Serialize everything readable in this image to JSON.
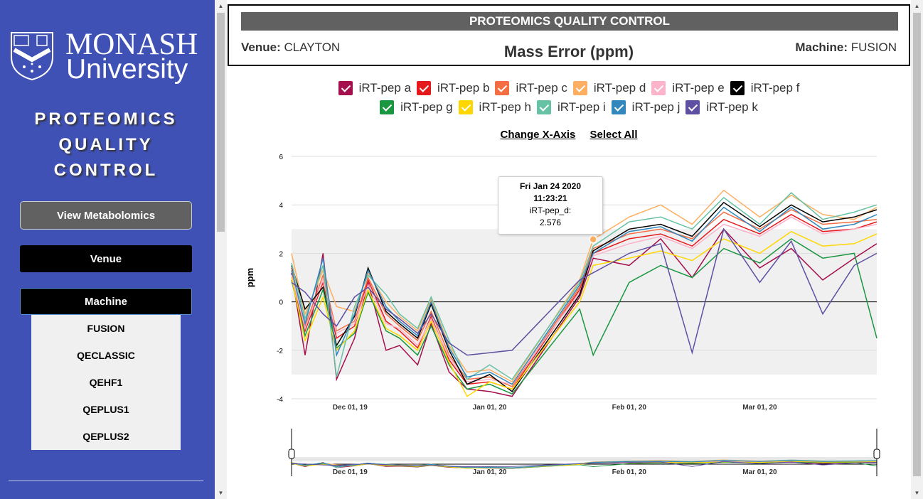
{
  "sidebar": {
    "logo_word1": "MONASH",
    "logo_word2": "University",
    "app_title_lines": [
      "PROTEOMICS",
      "QUALITY",
      "CONTROL"
    ],
    "view_button": "View Metabolomics",
    "venue_button": "Venue",
    "machine_button": "Machine",
    "machines": [
      "FUSION",
      "QECLASSIC",
      "QEHF1",
      "QEPLUS1",
      "QEPLUS2"
    ],
    "bg_color": "#3f51b5"
  },
  "header": {
    "bar_title": "PROTEOMICS QUALITY CONTROL",
    "venue_label": "Venue:",
    "venue_value": "CLAYTON",
    "chart_title": "Mass Error (ppm)",
    "machine_label": "Machine:",
    "machine_value": "FUSION"
  },
  "links": {
    "change_axis": "Change X-Axis",
    "select_all": "Select All"
  },
  "tooltip": {
    "date": "Fri Jan 24 2020",
    "time": "11:23:21",
    "series": "iRT-pep_d:",
    "value": "2.576"
  },
  "chart_data": {
    "type": "line",
    "ylabel": "ppm",
    "ylim": [
      -4,
      6
    ],
    "yticks": [
      -4,
      -2,
      0,
      2,
      4,
      6
    ],
    "shaded_band": [
      -3,
      3
    ],
    "xlim": [
      "2019-11-18",
      "2020-03-27"
    ],
    "xticks": [
      {
        "date": "2019-12-01",
        "label": "Dec 01, 19"
      },
      {
        "date": "2020-01-01",
        "label": "Jan 01, 20"
      },
      {
        "date": "2020-02-01",
        "label": "Feb 01, 20"
      },
      {
        "date": "2020-03-01",
        "label": "Mar 01, 20"
      }
    ],
    "highlight_point": {
      "series": "iRT-pep d",
      "x": "2020-01-24",
      "y": 2.576
    },
    "series": [
      {
        "name": "iRT-pep a",
        "color": "#a50f4d",
        "x": [
          "2019-11-18",
          "2019-11-21",
          "2019-11-25",
          "2019-11-28",
          "2019-12-02",
          "2019-12-05",
          "2019-12-09",
          "2019-12-12",
          "2019-12-16",
          "2019-12-19",
          "2019-12-23",
          "2019-12-27",
          "2020-01-01",
          "2020-01-06",
          "2020-01-21",
          "2020-01-24",
          "2020-02-01",
          "2020-02-08",
          "2020-02-15",
          "2020-02-22",
          "2020-03-01",
          "2020-03-08",
          "2020-03-15",
          "2020-03-22",
          "2020-03-27"
        ],
        "y": [
          1.2,
          -2.2,
          2.0,
          -3.2,
          -1.5,
          0.8,
          -2.0,
          -1.8,
          -2.6,
          -0.9,
          -2.9,
          -3.6,
          -3.7,
          -3.9,
          0.2,
          1.8,
          1.5,
          2.6,
          1.0,
          3.0,
          1.4,
          2.2,
          0.9,
          1.8,
          2.4
        ]
      },
      {
        "name": "iRT-pep b",
        "color": "#e41a1c",
        "x": [
          "2019-11-18",
          "2019-11-21",
          "2019-11-25",
          "2019-11-28",
          "2019-12-02",
          "2019-12-05",
          "2019-12-09",
          "2019-12-12",
          "2019-12-16",
          "2019-12-19",
          "2019-12-23",
          "2019-12-27",
          "2020-01-01",
          "2020-01-06",
          "2020-01-21",
          "2020-01-24",
          "2020-02-01",
          "2020-02-08",
          "2020-02-15",
          "2020-02-22",
          "2020-03-01",
          "2020-03-08",
          "2020-03-15",
          "2020-03-22",
          "2020-03-27"
        ],
        "y": [
          1.0,
          -1.2,
          0.8,
          -1.5,
          -1.0,
          0.9,
          -0.8,
          -1.2,
          -1.9,
          -0.6,
          -2.4,
          -3.4,
          -3.3,
          -3.6,
          0.5,
          2.0,
          2.6,
          2.8,
          2.3,
          3.4,
          2.8,
          3.6,
          2.9,
          3.0,
          3.3
        ]
      },
      {
        "name": "iRT-pep c",
        "color": "#f46d43",
        "x": [
          "2019-11-18",
          "2019-11-21",
          "2019-11-25",
          "2019-11-28",
          "2019-12-02",
          "2019-12-05",
          "2019-12-09",
          "2019-12-12",
          "2019-12-16",
          "2019-12-19",
          "2019-12-23",
          "2019-12-27",
          "2020-01-01",
          "2020-01-06",
          "2020-01-21",
          "2020-01-24",
          "2020-02-01",
          "2020-02-08",
          "2020-02-15",
          "2020-02-22",
          "2020-03-01",
          "2020-03-08",
          "2020-03-15",
          "2020-03-22",
          "2020-03-27"
        ],
        "y": [
          1.4,
          -1.0,
          1.1,
          -1.2,
          -0.8,
          1.0,
          -0.5,
          -1.0,
          -1.6,
          -0.4,
          -2.2,
          -3.2,
          -3.1,
          -3.5,
          0.6,
          2.2,
          2.8,
          3.0,
          2.6,
          3.7,
          3.0,
          3.8,
          3.2,
          3.3,
          3.4
        ]
      },
      {
        "name": "iRT-pep d",
        "color": "#fdae61",
        "x": [
          "2019-11-18",
          "2019-11-21",
          "2019-11-25",
          "2019-11-28",
          "2019-12-02",
          "2019-12-05",
          "2019-12-09",
          "2019-12-12",
          "2019-12-16",
          "2019-12-19",
          "2019-12-23",
          "2019-12-27",
          "2020-01-01",
          "2020-01-06",
          "2020-01-21",
          "2020-01-24",
          "2020-02-01",
          "2020-02-08",
          "2020-02-15",
          "2020-02-22",
          "2020-03-01",
          "2020-03-08",
          "2020-03-15",
          "2020-03-22",
          "2020-03-27"
        ],
        "y": [
          2.0,
          -0.5,
          1.3,
          -0.2,
          -0.4,
          1.2,
          0.0,
          -0.6,
          -1.2,
          0.1,
          -1.8,
          -2.9,
          -2.8,
          -3.3,
          0.9,
          2.576,
          3.5,
          4.0,
          3.2,
          4.6,
          3.5,
          4.4,
          3.6,
          3.4,
          3.9
        ]
      },
      {
        "name": "iRT-pep e",
        "color": "#fbb4c9",
        "x": [
          "2019-11-18",
          "2019-11-21",
          "2019-11-25",
          "2019-11-28",
          "2019-12-02",
          "2019-12-05",
          "2019-12-09",
          "2019-12-12",
          "2019-12-16",
          "2019-12-19",
          "2019-12-23",
          "2019-12-27",
          "2020-01-01",
          "2020-01-06",
          "2020-01-21",
          "2020-01-24",
          "2020-02-01",
          "2020-02-08",
          "2020-02-15",
          "2020-02-22",
          "2020-03-01",
          "2020-03-08",
          "2020-03-15",
          "2020-03-22",
          "2020-03-27"
        ],
        "y": [
          1.1,
          -1.1,
          0.9,
          -1.3,
          -0.9,
          0.7,
          -0.9,
          -1.1,
          -1.8,
          -0.7,
          -2.3,
          -3.3,
          -3.2,
          -3.4,
          0.4,
          1.9,
          2.4,
          2.7,
          2.2,
          3.2,
          2.7,
          3.5,
          2.8,
          3.0,
          3.2
        ]
      },
      {
        "name": "iRT-pep f",
        "color": "#000000",
        "x": [
          "2019-11-18",
          "2019-11-21",
          "2019-11-25",
          "2019-11-28",
          "2019-12-02",
          "2019-12-05",
          "2019-12-09",
          "2019-12-12",
          "2019-12-16",
          "2019-12-19",
          "2019-12-23",
          "2019-12-27",
          "2020-01-01",
          "2020-01-06",
          "2020-01-21",
          "2020-01-24",
          "2020-02-01",
          "2020-02-08",
          "2020-02-15",
          "2020-02-22",
          "2020-03-01",
          "2020-03-08",
          "2020-03-15",
          "2020-03-22",
          "2020-03-27"
        ],
        "y": [
          1.5,
          -0.3,
          0.6,
          -1.8,
          -0.6,
          1.4,
          -0.4,
          -0.9,
          -1.5,
          -0.1,
          -2.0,
          -3.4,
          -3.0,
          -3.7,
          0.3,
          2.1,
          3.0,
          3.2,
          2.7,
          4.1,
          3.1,
          4.0,
          3.3,
          3.5,
          3.8
        ]
      },
      {
        "name": "iRT-pep g",
        "color": "#1a9641",
        "x": [
          "2019-11-18",
          "2019-11-21",
          "2019-11-25",
          "2019-11-28",
          "2019-12-02",
          "2019-12-05",
          "2019-12-09",
          "2019-12-12",
          "2019-12-16",
          "2019-12-19",
          "2019-12-23",
          "2019-12-27",
          "2020-01-01",
          "2020-01-06",
          "2020-01-21",
          "2020-01-24",
          "2020-02-01",
          "2020-02-08",
          "2020-02-15",
          "2020-02-22",
          "2020-03-01",
          "2020-03-08",
          "2020-03-15",
          "2020-03-22",
          "2020-03-27"
        ],
        "y": [
          0.9,
          -1.4,
          0.5,
          -1.9,
          -1.3,
          0.4,
          -1.2,
          -1.5,
          -2.2,
          -1.0,
          -2.6,
          -3.6,
          -3.4,
          -3.8,
          -0.3,
          -2.2,
          0.8,
          1.5,
          1.0,
          2.2,
          1.6,
          2.6,
          1.8,
          2.0,
          -1.5
        ]
      },
      {
        "name": "iRT-pep h",
        "color": "#ffd700",
        "x": [
          "2019-11-18",
          "2019-11-21",
          "2019-11-25",
          "2019-11-28",
          "2019-12-02",
          "2019-12-05",
          "2019-12-09",
          "2019-12-12",
          "2019-12-16",
          "2019-12-19",
          "2019-12-23",
          "2019-12-27",
          "2020-01-01",
          "2020-01-06",
          "2020-01-21",
          "2020-01-24",
          "2020-02-01",
          "2020-02-08",
          "2020-02-15",
          "2020-02-22",
          "2020-03-01",
          "2020-03-08",
          "2020-03-15",
          "2020-03-22",
          "2020-03-27"
        ],
        "y": [
          1.0,
          -1.6,
          0.2,
          -2.0,
          -1.2,
          0.5,
          -1.1,
          -1.4,
          -2.0,
          -0.8,
          -2.5,
          -3.9,
          -3.3,
          -3.6,
          0.0,
          1.5,
          1.8,
          2.1,
          1.7,
          2.6,
          2.0,
          2.9,
          2.3,
          2.4,
          2.8
        ]
      },
      {
        "name": "iRT-pep i",
        "color": "#66c2a5",
        "x": [
          "2019-11-18",
          "2019-11-21",
          "2019-11-25",
          "2019-11-28",
          "2019-12-02",
          "2019-12-05",
          "2019-12-09",
          "2019-12-12",
          "2019-12-16",
          "2019-12-19",
          "2019-12-23",
          "2019-12-27",
          "2020-01-01",
          "2020-01-06",
          "2020-01-21",
          "2020-01-24",
          "2020-02-01",
          "2020-02-08",
          "2020-02-15",
          "2020-02-22",
          "2020-03-01",
          "2020-03-08",
          "2020-03-15",
          "2020-03-22",
          "2020-03-27"
        ],
        "y": [
          1.6,
          -0.7,
          1.5,
          -3.1,
          -0.2,
          1.1,
          0.3,
          -0.5,
          -1.1,
          0.2,
          -1.6,
          -3.2,
          -2.6,
          -3.2,
          0.8,
          2.3,
          3.3,
          3.5,
          3.0,
          4.3,
          3.2,
          4.5,
          3.4,
          3.7,
          4.0
        ]
      },
      {
        "name": "iRT-pep j",
        "color": "#3288bd",
        "x": [
          "2019-11-18",
          "2019-11-21",
          "2019-11-25",
          "2019-11-28",
          "2019-12-02",
          "2019-12-05",
          "2019-12-09",
          "2019-12-12",
          "2019-12-16",
          "2019-12-19",
          "2019-12-23",
          "2019-12-27",
          "2020-01-01",
          "2020-01-06",
          "2020-01-21",
          "2020-01-24",
          "2020-02-01",
          "2020-02-08",
          "2020-02-15",
          "2020-02-22",
          "2020-03-01",
          "2020-03-08",
          "2020-03-15",
          "2020-03-22",
          "2020-03-27"
        ],
        "y": [
          1.3,
          -0.9,
          1.8,
          -2.2,
          -0.5,
          1.3,
          -0.2,
          -0.8,
          -1.4,
          0.0,
          -1.9,
          -3.1,
          -2.9,
          -3.4,
          0.7,
          2.0,
          2.9,
          3.1,
          2.5,
          3.9,
          2.9,
          3.9,
          3.0,
          3.2,
          3.6
        ]
      },
      {
        "name": "iRT-pep k",
        "color": "#5e4fa2",
        "x": [
          "2019-11-18",
          "2019-11-21",
          "2019-11-25",
          "2019-11-28",
          "2019-12-02",
          "2019-12-05",
          "2019-12-09",
          "2019-12-12",
          "2019-12-16",
          "2019-12-19",
          "2019-12-23",
          "2019-12-27",
          "2020-01-01",
          "2020-01-06",
          "2020-01-21",
          "2020-01-24",
          "2020-02-01",
          "2020-02-08",
          "2020-02-15",
          "2020-02-22",
          "2020-03-01",
          "2020-03-08",
          "2020-03-15",
          "2020-03-22",
          "2020-03-27"
        ],
        "y": [
          0.8,
          0.4,
          -0.5,
          -1.0,
          0.2,
          0.6,
          -0.3,
          -0.7,
          -1.3,
          -0.5,
          -1.7,
          -2.2,
          -2.1,
          -2.0,
          0.9,
          1.2,
          2.0,
          2.4,
          -2.1,
          3.0,
          0.8,
          2.5,
          -0.5,
          1.5,
          2.0
        ]
      }
    ]
  }
}
